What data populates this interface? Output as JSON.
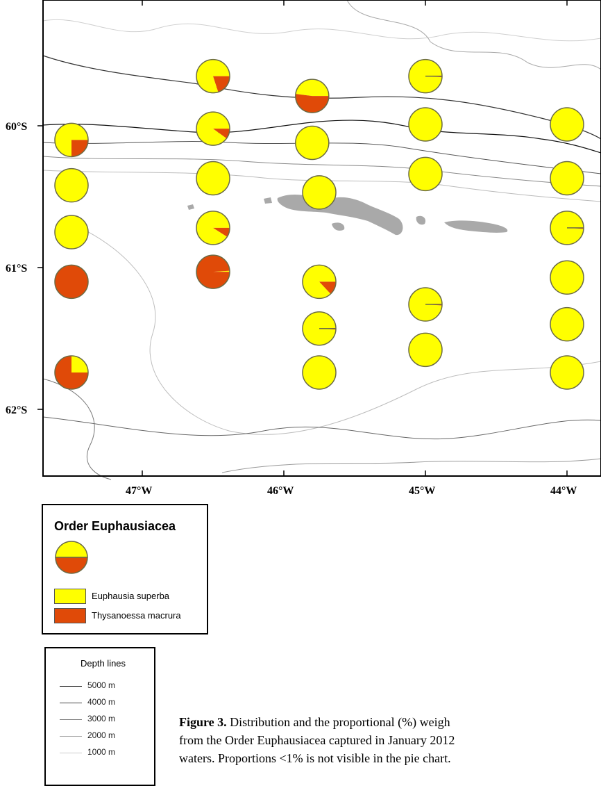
{
  "map": {
    "lat_labels": [
      "60°S",
      "61°S",
      "62°S"
    ],
    "lon_labels": [
      "47°W",
      "46°W",
      "45°W",
      "44°W"
    ],
    "colors": {
      "euphausia_superba": "#ffff00",
      "thysanoessa_macrura": "#e04a08",
      "land": "#a9a9a9",
      "pie_outline": "#6b6b45"
    }
  },
  "chart_data": {
    "type": "pie",
    "series_names": [
      "Euphausia superba",
      "Thysanoessa macrura"
    ],
    "stations": [
      {
        "lon": -47.5,
        "lat": -60.1,
        "euphausia_superba": 75,
        "thysanoessa_macrura": 25
      },
      {
        "lon": -47.5,
        "lat": -60.42,
        "euphausia_superba": 100,
        "thysanoessa_macrura": 0
      },
      {
        "lon": -47.5,
        "lat": -60.75,
        "euphausia_superba": 100,
        "thysanoessa_macrura": 0
      },
      {
        "lon": -47.5,
        "lat": -61.1,
        "euphausia_superba": 0,
        "thysanoessa_macrura": 100
      },
      {
        "lon": -47.5,
        "lat": -61.74,
        "euphausia_superba": 25,
        "thysanoessa_macrura": 75
      },
      {
        "lon": -46.5,
        "lat": -59.65,
        "euphausia_superba": 80,
        "thysanoessa_macrura": 20
      },
      {
        "lon": -46.5,
        "lat": -60.02,
        "euphausia_superba": 90,
        "thysanoessa_macrura": 10
      },
      {
        "lon": -46.5,
        "lat": -60.37,
        "euphausia_superba": 100,
        "thysanoessa_macrura": 0
      },
      {
        "lon": -46.5,
        "lat": -60.72,
        "euphausia_superba": 91,
        "thysanoessa_macrura": 9
      },
      {
        "lon": -46.5,
        "lat": -61.03,
        "euphausia_superba": 1,
        "thysanoessa_macrura": 99
      },
      {
        "lon": -45.8,
        "lat": -59.79,
        "euphausia_superba": 48,
        "thysanoessa_macrura": 52
      },
      {
        "lon": -45.8,
        "lat": -60.12,
        "euphausia_superba": 100,
        "thysanoessa_macrura": 0
      },
      {
        "lon": -45.75,
        "lat": -60.47,
        "euphausia_superba": 100,
        "thysanoessa_macrura": 0
      },
      {
        "lon": -45.75,
        "lat": -61.1,
        "euphausia_superba": 87,
        "thysanoessa_macrura": 13
      },
      {
        "lon": -45.75,
        "lat": -61.43,
        "euphausia_superba": 99,
        "thysanoessa_macrura": 1
      },
      {
        "lon": -45.75,
        "lat": -61.74,
        "euphausia_superba": 100,
        "thysanoessa_macrura": 0
      },
      {
        "lon": -45.0,
        "lat": -59.65,
        "euphausia_superba": 99,
        "thysanoessa_macrura": 1
      },
      {
        "lon": -45.0,
        "lat": -59.99,
        "euphausia_superba": 100,
        "thysanoessa_macrura": 0
      },
      {
        "lon": -45.0,
        "lat": -60.34,
        "euphausia_superba": 100,
        "thysanoessa_macrura": 0
      },
      {
        "lon": -45.0,
        "lat": -61.26,
        "euphausia_superba": 99,
        "thysanoessa_macrura": 1
      },
      {
        "lon": -45.0,
        "lat": -61.58,
        "euphausia_superba": 100,
        "thysanoessa_macrura": 0
      },
      {
        "lon": -44.0,
        "lat": -59.99,
        "euphausia_superba": 100,
        "thysanoessa_macrura": 0
      },
      {
        "lon": -44.0,
        "lat": -60.37,
        "euphausia_superba": 100,
        "thysanoessa_macrura": 0
      },
      {
        "lon": -44.0,
        "lat": -60.72,
        "euphausia_superba": 99,
        "thysanoessa_macrura": 1
      },
      {
        "lon": -44.0,
        "lat": -61.07,
        "euphausia_superba": 100,
        "thysanoessa_macrura": 0
      },
      {
        "lon": -44.0,
        "lat": -61.4,
        "euphausia_superba": 100,
        "thysanoessa_macrura": 0
      },
      {
        "lon": -44.0,
        "lat": -61.74,
        "euphausia_superba": 100,
        "thysanoessa_macrura": 0
      }
    ]
  },
  "legend": {
    "title": "Order Euphausiacea",
    "items": [
      {
        "label": "Euphausia superba",
        "color": "#ffff00"
      },
      {
        "label": "Thysanoessa macrura",
        "color": "#e04a08"
      }
    ]
  },
  "depth_legend": {
    "title": "Depth lines",
    "items": [
      {
        "label": "5000 m",
        "color": "#111111"
      },
      {
        "label": "4000 m",
        "color": "#444444"
      },
      {
        "label": "3000 m",
        "color": "#777777"
      },
      {
        "label": "2000 m",
        "color": "#a0a0a0"
      },
      {
        "label": "1000 m",
        "color": "#cccccc"
      }
    ]
  },
  "caption": {
    "label": "Figure 3.",
    "line1": " Distribution and the proportional (%) weigh",
    "line2": "from the Order Euphausiacea captured in January 2012",
    "line3": "waters. Proportions <1% is not visible in the pie chart."
  }
}
